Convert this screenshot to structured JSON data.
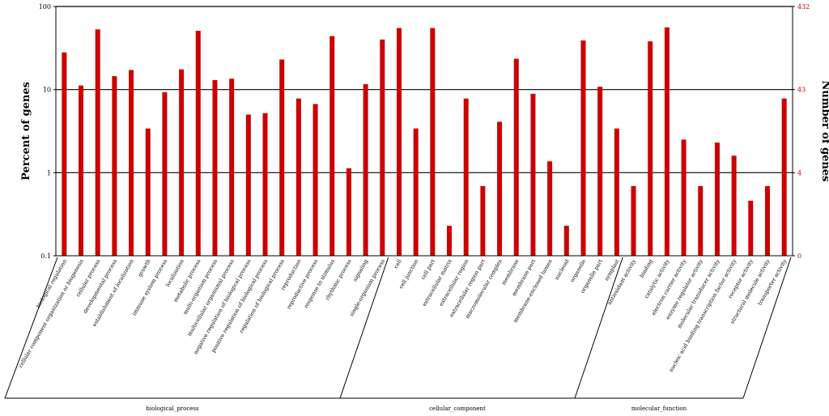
{
  "chart_data": {
    "type": "bar",
    "title": "",
    "ylabel": "Percent of genes",
    "y2label": "Number of genes",
    "yscale": "log",
    "ylim": [
      0.1,
      100
    ],
    "yticks": [
      "100",
      "10",
      "1",
      "0.1"
    ],
    "y2ticks": [
      "432",
      "43",
      "4",
      "0"
    ],
    "bar_color": "#cc0000",
    "grid": "horizontal at 1, 10, 100",
    "categories": [
      "biological regulation",
      "cellular component organization or biogenesis",
      "cellular process",
      "developmental process",
      "establishment of localization",
      "growth",
      "immune system process",
      "localization",
      "metabolic process",
      "multi-organism process",
      "multicellular organismal process",
      "negative regulation of biological process",
      "positive regulation of biological process",
      "regulation of biological process",
      "reproduction",
      "reproductive process",
      "response to stimulus",
      "rhythmic process",
      "signaling",
      "single-organism process",
      "cell",
      "cell junction",
      "cell part",
      "extracellular matrix",
      "extracellular region",
      "extracellular region part",
      "macromolecular complex",
      "membrane",
      "membrane part",
      "membrane-enclosed lumen",
      "nucleoid",
      "organelle",
      "organelle part",
      "symplast",
      "antioxidant activity",
      "binding",
      "catalytic activity",
      "electron carrier activity",
      "enzyme regulator activity",
      "molecular transducer activity",
      "nucleic acid binding transcription factor activity",
      "receptor activity",
      "structural molecule activity",
      "transporter activity"
    ],
    "values": [
      28,
      11.2,
      53,
      14.5,
      17.2,
      3.4,
      9.3,
      17.5,
      51,
      13,
      13.5,
      5,
      5.2,
      23,
      7.8,
      6.7,
      44,
      1.13,
      11.6,
      40,
      55,
      3.4,
      55,
      0.23,
      7.8,
      0.69,
      4.1,
      23.5,
      8.9,
      1.37,
      0.23,
      39,
      10.8,
      3.4,
      0.69,
      38,
      56,
      2.5,
      0.69,
      2.3,
      1.6,
      0.46,
      0.69,
      7.8
    ],
    "groups": [
      {
        "name": "biological_process",
        "start": 0,
        "end": 19
      },
      {
        "name": "cellular_component",
        "start": 20,
        "end": 33
      },
      {
        "name": "molecular_function",
        "start": 34,
        "end": 43
      }
    ]
  }
}
